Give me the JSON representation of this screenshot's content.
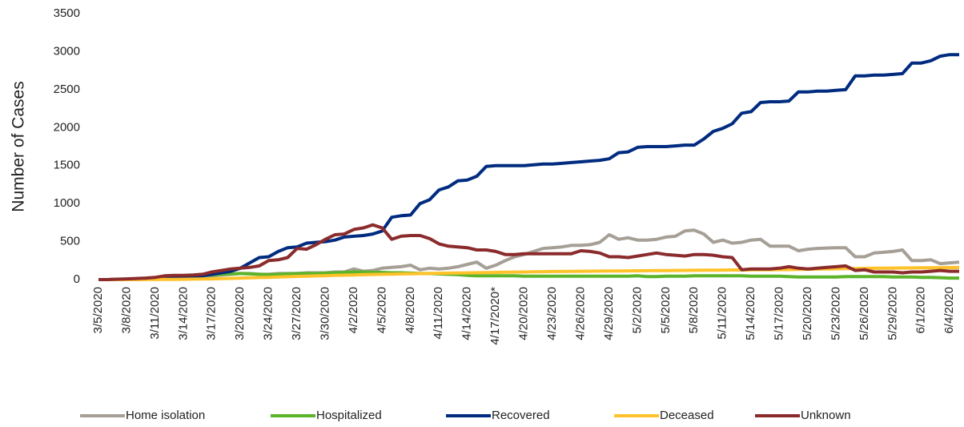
{
  "chart_data": {
    "type": "line",
    "ylabel": "Number of Cases",
    "categories": [
      "3/5/2020",
      null,
      null,
      "3/8/2020",
      null,
      null,
      "3/11/2020",
      null,
      null,
      "3/14/2020",
      null,
      null,
      "3/17/2020",
      null,
      null,
      "3/20/2020",
      null,
      null,
      "3/24/2020",
      null,
      null,
      "3/27/2020",
      null,
      null,
      "3/30/2020",
      null,
      null,
      "4/2/2020",
      null,
      null,
      "4/5/2020",
      null,
      null,
      "4/8/2020",
      null,
      null,
      "4/11/2020",
      null,
      null,
      "4/14/2020",
      null,
      null,
      "4/17/2020*",
      null,
      null,
      "4/20/2020",
      null,
      null,
      "4/23/2020",
      null,
      null,
      "4/26/2020",
      null,
      null,
      "4/29/2020",
      null,
      null,
      "5/2/2020",
      null,
      null,
      "5/5/2020",
      null,
      null,
      "5/8/2020",
      null,
      null,
      "5/11/2020",
      null,
      null,
      "5/14/2020",
      null,
      null,
      "5/17/2020",
      null,
      null,
      "5/20/2020",
      null,
      null,
      "5/23/2020",
      null,
      null,
      "5/26/2020",
      null,
      null,
      "5/29/2020",
      null,
      null,
      "6/1/2020",
      null,
      null,
      "6/4/2020",
      null
    ],
    "series": [
      {
        "name": "Home isolation",
        "color": "#a59f96",
        "values": [
          0,
          0,
          2,
          4,
          5,
          8,
          10,
          15,
          20,
          25,
          30,
          40,
          50,
          60,
          70,
          80,
          80,
          70,
          70,
          80,
          80,
          80,
          90,
          90,
          90,
          100,
          100,
          140,
          110,
          120,
          150,
          160,
          170,
          190,
          130,
          150,
          140,
          150,
          170,
          200,
          230,
          150,
          190,
          250,
          300,
          330,
          370,
          410,
          420,
          430,
          450,
          450,
          460,
          490,
          590,
          530,
          550,
          520,
          520,
          530,
          560,
          570,
          640,
          650,
          600,
          490,
          520,
          480,
          490,
          520,
          530,
          440,
          440,
          440,
          380,
          400,
          410,
          415,
          420,
          420,
          300,
          300,
          350,
          360,
          370,
          390,
          250,
          250,
          260,
          210,
          220,
          230
        ]
      },
      {
        "name": "Hospitalized",
        "color": "#5cb42a",
        "values": [
          0,
          0,
          2,
          5,
          8,
          10,
          15,
          20,
          30,
          40,
          50,
          55,
          60,
          70,
          75,
          80,
          75,
          70,
          65,
          70,
          75,
          80,
          80,
          80,
          85,
          90,
          95,
          100,
          100,
          95,
          95,
          90,
          90,
          85,
          80,
          80,
          75,
          70,
          65,
          55,
          50,
          50,
          50,
          50,
          50,
          45,
          45,
          45,
          45,
          45,
          45,
          45,
          45,
          45,
          45,
          45,
          45,
          50,
          40,
          40,
          45,
          45,
          45,
          50,
          50,
          50,
          50,
          50,
          50,
          45,
          45,
          45,
          45,
          40,
          35,
          35,
          35,
          35,
          35,
          40,
          40,
          40,
          40,
          40,
          35,
          35,
          35,
          30,
          30,
          25,
          20,
          20
        ]
      },
      {
        "name": "Recovered",
        "color": "#002b7f",
        "values": [
          0,
          0,
          2,
          3,
          5,
          8,
          10,
          15,
          20,
          30,
          40,
          50,
          70,
          90,
          110,
          150,
          220,
          290,
          300,
          370,
          420,
          430,
          480,
          490,
          500,
          520,
          560,
          570,
          580,
          600,
          640,
          820,
          840,
          850,
          1000,
          1050,
          1180,
          1220,
          1300,
          1310,
          1360,
          1490,
          1500,
          1500,
          1500,
          1500,
          1510,
          1520,
          1520,
          1530,
          1540,
          1550,
          1560,
          1570,
          1590,
          1670,
          1680,
          1740,
          1750,
          1750,
          1750,
          1760,
          1770,
          1770,
          1850,
          1950,
          1990,
          2050,
          2190,
          2210,
          2330,
          2340,
          2340,
          2350,
          2470,
          2470,
          2480,
          2480,
          2490,
          2500,
          2680,
          2680,
          2690,
          2690,
          2700,
          2710,
          2850,
          2850,
          2880,
          2940,
          2960,
          2960
        ]
      },
      {
        "name": "Deceased",
        "color": "#ffc22a",
        "values": [
          0,
          0,
          0,
          0,
          0,
          1,
          1,
          2,
          3,
          4,
          6,
          8,
          10,
          13,
          16,
          20,
          23,
          27,
          30,
          34,
          38,
          42,
          45,
          48,
          52,
          55,
          58,
          61,
          64,
          67,
          70,
          72,
          75,
          77,
          79,
          81,
          83,
          85,
          87,
          89,
          91,
          93,
          95,
          97,
          99,
          100,
          102,
          104,
          106,
          107,
          109,
          110,
          111,
          112,
          113,
          114,
          115,
          116,
          117,
          118,
          119,
          120,
          121,
          122,
          123,
          124,
          125,
          126,
          127,
          128,
          129,
          130,
          131,
          132,
          134,
          136,
          138,
          140,
          142,
          144,
          146,
          148,
          150,
          151,
          152,
          153,
          154,
          155,
          156,
          157,
          158,
          159
        ]
      },
      {
        "name": "Unknown",
        "color": "#8b2b2c",
        "values": [
          0,
          0,
          5,
          10,
          15,
          20,
          30,
          50,
          55,
          55,
          60,
          70,
          100,
          120,
          140,
          150,
          160,
          180,
          250,
          260,
          290,
          410,
          400,
          460,
          530,
          590,
          600,
          660,
          680,
          720,
          680,
          530,
          570,
          580,
          580,
          540,
          470,
          440,
          430,
          420,
          390,
          390,
          370,
          330,
          330,
          340,
          340,
          340,
          340,
          340,
          340,
          380,
          370,
          350,
          300,
          300,
          290,
          310,
          330,
          350,
          330,
          320,
          310,
          330,
          330,
          320,
          300,
          290,
          130,
          140,
          140,
          140,
          150,
          170,
          150,
          140,
          150,
          160,
          170,
          180,
          120,
          130,
          100,
          100,
          100,
          90,
          100,
          100,
          110,
          120,
          110,
          110
        ]
      }
    ],
    "ylim": [
      0,
      3500
    ],
    "yticks": [
      0,
      500,
      1000,
      1500,
      2000,
      2500,
      3000,
      3500
    ],
    "grid": false,
    "legend": "bottom"
  }
}
